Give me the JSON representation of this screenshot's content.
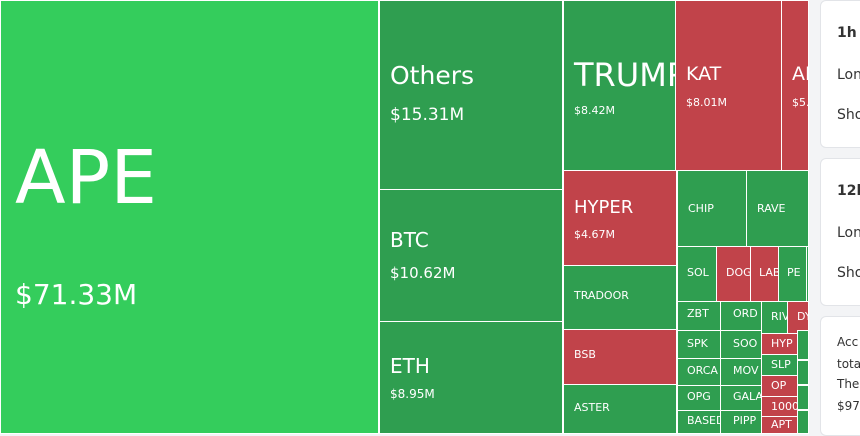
{
  "treemap": {
    "tiles": [
      {
        "label": "APE",
        "value": "$71.33M"
      },
      {
        "label": "Others",
        "value": "$15.31M"
      },
      {
        "label": "BTC",
        "value": "$10.62M"
      },
      {
        "label": "ETH",
        "value": "$8.95M"
      },
      {
        "label": "TRUMP",
        "value": "$8.42M"
      },
      {
        "label": "KAT",
        "value": "$8.01M"
      },
      {
        "label": "AI",
        "value": "$5."
      },
      {
        "label": "HYPER",
        "value": "$4.67M"
      },
      {
        "label": "TRADOOR"
      },
      {
        "label": "BSB"
      },
      {
        "label": "ASTER"
      },
      {
        "label": "CHIP"
      },
      {
        "label": "RAVE"
      },
      {
        "label": "SOL"
      },
      {
        "label": "DOG"
      },
      {
        "label": "LAB"
      },
      {
        "label": "PE"
      },
      {
        "label": "ZBT"
      },
      {
        "label": "ORD"
      },
      {
        "label": "RIV"
      },
      {
        "label": "DY"
      },
      {
        "label": "SPK"
      },
      {
        "label": "SOO"
      },
      {
        "label": "HYP"
      },
      {
        "label": "SLP"
      },
      {
        "label": "ORCA"
      },
      {
        "label": "MOV"
      },
      {
        "label": "OP"
      },
      {
        "label": "OPG"
      },
      {
        "label": "GALA"
      },
      {
        "label": "1000"
      },
      {
        "label": "BASED"
      },
      {
        "label": "PIPP"
      },
      {
        "label": "APT"
      }
    ]
  },
  "panel": {
    "cards": [
      {
        "lines": [
          "1h",
          "Lon",
          "Sho"
        ]
      },
      {
        "lines": [
          "12h",
          "Lon",
          "Sho"
        ]
      },
      {
        "lines": [
          "Acc",
          "tota",
          "The",
          "$97"
        ]
      }
    ]
  }
}
